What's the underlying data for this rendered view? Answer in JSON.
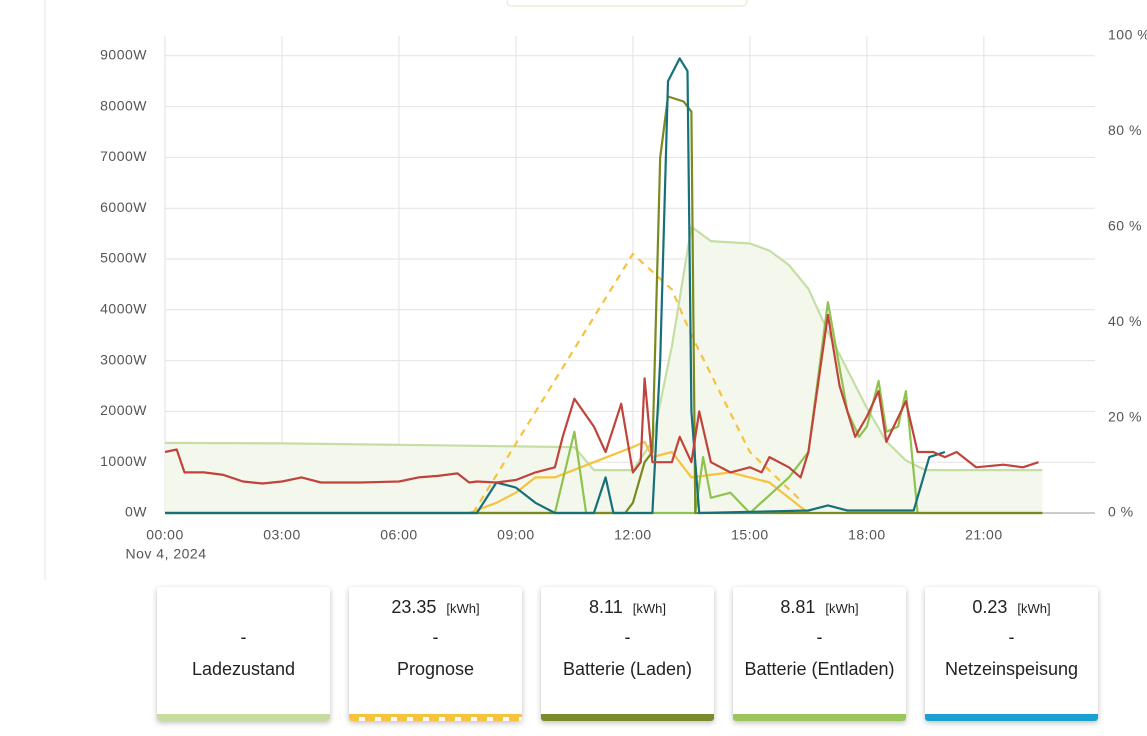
{
  "chart_data": {
    "type": "line",
    "date_label": "Nov 4, 2024",
    "grid": true,
    "xlim": [
      0,
      23.85
    ],
    "xticks": [
      {
        "value": 0,
        "label": "00:00"
      },
      {
        "value": 3,
        "label": "03:00"
      },
      {
        "value": 6,
        "label": "06:00"
      },
      {
        "value": 9,
        "label": "09:00"
      },
      {
        "value": 12,
        "label": "12:00"
      },
      {
        "value": 15,
        "label": "15:00"
      },
      {
        "value": 18,
        "label": "18:00"
      },
      {
        "value": 21,
        "label": "21:00"
      }
    ],
    "ylim": [
      0,
      9390
    ],
    "yticks": [
      {
        "value": 0,
        "label": "0W"
      },
      {
        "value": 1000,
        "label": "1000W"
      },
      {
        "value": 2000,
        "label": "2000W"
      },
      {
        "value": 3000,
        "label": "3000W"
      },
      {
        "value": 4000,
        "label": "4000W"
      },
      {
        "value": 5000,
        "label": "5000W"
      },
      {
        "value": 6000,
        "label": "6000W"
      },
      {
        "value": 7000,
        "label": "7000W"
      },
      {
        "value": 8000,
        "label": "8000W"
      },
      {
        "value": 9000,
        "label": "9000W"
      }
    ],
    "y2lim": [
      0,
      100
    ],
    "y2ticks": [
      {
        "value": 0,
        "label": "0 %"
      },
      {
        "value": 20,
        "label": "20 %"
      },
      {
        "value": 40,
        "label": "40 %"
      },
      {
        "value": 60,
        "label": "60 %"
      },
      {
        "value": 80,
        "label": "80 %"
      },
      {
        "value": 100,
        "label": "100 %"
      }
    ],
    "series": [
      {
        "color": "#c5dea4",
        "axis": "y2",
        "fill": "#f4f8ec",
        "x": [
          0,
          3,
          7,
          10.5,
          11,
          12,
          12.5,
          13,
          13.5,
          14,
          15,
          15.5,
          16,
          16.5,
          17,
          17.5,
          18,
          18.5,
          19,
          19.5,
          22.5
        ],
        "values": [
          14.7,
          14.6,
          14.2,
          13.8,
          9,
          9,
          15,
          35,
          60,
          57,
          56.5,
          55,
          52,
          47,
          38,
          30,
          22,
          15,
          11,
          9,
          9
        ]
      },
      {
        "color": "#f7c23d",
        "dashed": true,
        "x": [
          7.9,
          12,
          13,
          13.5,
          15,
          16.3
        ],
        "values": [
          0,
          5100,
          4400,
          3500,
          1200,
          250
        ]
      },
      {
        "color": "#f7c23d",
        "x": [
          7.8,
          8.5,
          9,
          9.5,
          10,
          11,
          12,
          12.3,
          12.5,
          13,
          13.5,
          14.5,
          15,
          15.5,
          16,
          16.5
        ],
        "values": [
          0,
          200,
          400,
          700,
          700,
          1000,
          1300,
          1400,
          1100,
          1200,
          700,
          800,
          700,
          600,
          300,
          0
        ]
      },
      {
        "color": "#8fc24f",
        "x": [
          0,
          10,
          10.5,
          10.8,
          13.6,
          13.8,
          14,
          14.5,
          15,
          16,
          16.5,
          17,
          17.5,
          17.8,
          18,
          18.3,
          18.5,
          18.8,
          19,
          19.3,
          22.5
        ],
        "values": [
          0,
          0,
          1600,
          0,
          0,
          1100,
          300,
          400,
          0,
          700,
          1200,
          4150,
          2000,
          1500,
          1700,
          2600,
          1600,
          1700,
          2400,
          0,
          0
        ]
      },
      {
        "color": "#7a8a1e",
        "x": [
          0,
          11.8,
          12,
          12.3,
          12.5,
          12.7,
          12.9,
          13.3,
          13.5,
          13.6,
          22.5
        ],
        "values": [
          0,
          0,
          200,
          1000,
          1200,
          7000,
          8200,
          8100,
          7900,
          0,
          0
        ]
      },
      {
        "color": "#16707a",
        "x": [
          0,
          8,
          8.5,
          9,
          9.5,
          10,
          11,
          11.3,
          11.5,
          12.5,
          12.7,
          12.9,
          13.2,
          13.4,
          13.5,
          13.7,
          16.5,
          17,
          17.5,
          19.2,
          19.6,
          20
        ],
        "values": [
          0,
          0,
          600,
          500,
          200,
          0,
          0,
          700,
          0,
          0,
          3000,
          8500,
          8950,
          8700,
          2000,
          0,
          50,
          150,
          50,
          50,
          1100,
          1200
        ]
      },
      {
        "color": "#c0433c",
        "x": [
          0,
          0.3,
          0.5,
          1,
          1.5,
          2,
          2.5,
          3,
          3.5,
          4,
          5,
          6,
          6.5,
          7,
          7.5,
          7.8,
          8,
          8.5,
          9,
          9.5,
          10,
          10.2,
          10.5,
          11,
          11.3,
          11.7,
          12,
          12.2,
          12.3,
          12.5,
          13,
          13.2,
          13.5,
          13.7,
          14,
          14.5,
          15,
          15.3,
          15.5,
          16,
          16.3,
          16.5,
          17,
          17.3,
          17.7,
          18,
          18.3,
          18.5,
          19,
          19.3,
          19.7,
          20,
          20.3,
          20.8,
          21.5,
          22,
          22.4
        ],
        "values": [
          1200,
          1250,
          800,
          800,
          750,
          620,
          580,
          620,
          700,
          600,
          600,
          620,
          700,
          730,
          780,
          600,
          620,
          600,
          650,
          800,
          900,
          1500,
          2250,
          1700,
          1200,
          2150,
          800,
          1000,
          2650,
          1000,
          1000,
          1500,
          1000,
          2000,
          1000,
          800,
          900,
          800,
          1100,
          900,
          700,
          1200,
          3900,
          2500,
          1500,
          1900,
          2400,
          1400,
          2200,
          1200,
          1200,
          1100,
          1200,
          900,
          950,
          900,
          1000
        ]
      }
    ]
  },
  "cards": [
    {
      "label": "Ladezustand",
      "placeholder": "-",
      "color": "#c8dca0"
    },
    {
      "label": "Prognose",
      "value": "23.35",
      "unit": "[kWh]",
      "placeholder": "-",
      "color": "#f7c23d",
      "dashed": true
    },
    {
      "label": "Batterie (Laden)",
      "value": "8.11",
      "unit": "[kWh]",
      "placeholder": "-",
      "color": "#7b8a2a"
    },
    {
      "label": "Batterie (Entladen)",
      "value": "8.81",
      "unit": "[kWh]",
      "placeholder": "-",
      "color": "#9bc45a"
    },
    {
      "label": "Netzeinspeisung",
      "value": "0.23",
      "unit": "[kWh]",
      "placeholder": "-",
      "color": "#1aa0d2"
    }
  ]
}
